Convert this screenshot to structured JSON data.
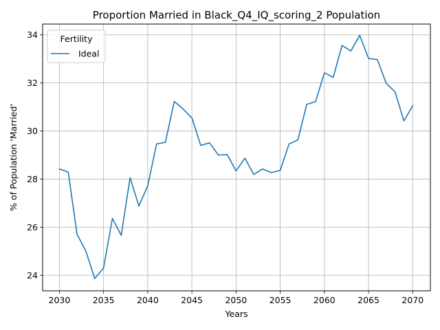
{
  "chart_data": {
    "type": "line",
    "title": "Proportion Married in Black_Q4_IQ_scoring_2 Population",
    "xlabel": "Years",
    "ylabel": "% of Population 'Married'",
    "xlim": [
      2028.1,
      2072.0
    ],
    "ylim": [
      23.35,
      34.45
    ],
    "xticks": [
      2030,
      2035,
      2040,
      2045,
      2050,
      2055,
      2060,
      2065,
      2070
    ],
    "yticks": [
      24,
      26,
      28,
      30,
      32,
      34
    ],
    "grid": true,
    "legend": {
      "title": "Fertility",
      "placement": "top-left"
    },
    "series": [
      {
        "name": "Ideal",
        "color": "#1f77b4",
        "x": [
          2030,
          2031,
          2032,
          2033,
          2034,
          2035,
          2036,
          2037,
          2038,
          2039,
          2040,
          2041,
          2042,
          2043,
          2044,
          2045,
          2046,
          2047,
          2048,
          2049,
          2050,
          2051,
          2052,
          2053,
          2054,
          2055,
          2056,
          2057,
          2058,
          2059,
          2060,
          2061,
          2062,
          2063,
          2064,
          2065,
          2066,
          2067,
          2068,
          2069,
          2070
        ],
        "y": [
          28.42,
          28.29,
          25.7,
          25.0,
          23.86,
          24.3,
          26.36,
          25.66,
          28.06,
          26.88,
          27.72,
          29.46,
          29.53,
          31.23,
          30.92,
          30.54,
          29.4,
          29.51,
          29.0,
          29.02,
          28.34,
          28.87,
          28.19,
          28.42,
          28.27,
          28.36,
          29.46,
          29.63,
          31.11,
          31.22,
          32.42,
          32.23,
          33.56,
          33.33,
          33.98,
          33.02,
          32.97,
          31.98,
          31.63,
          30.42,
          31.05
        ]
      }
    ]
  }
}
